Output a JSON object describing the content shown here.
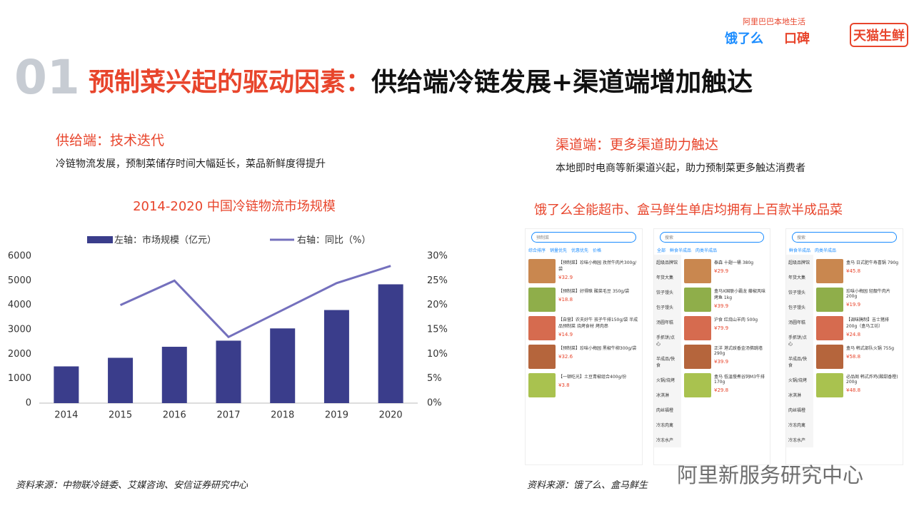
{
  "header": {
    "number": "01",
    "title_highlight": "预制菜兴起的驱动因素：",
    "title_rest": "供给端冷链发展+渠道端增加触达",
    "brand_tagline": "阿里巴巴本地生活",
    "brands": [
      "饿了么",
      "口碑",
      "天猫生鲜"
    ]
  },
  "left": {
    "heading": "供给端：技术迭代",
    "text": "冷链物流发展，预制菜储存时间大幅延长，菜品新鲜度得提升",
    "source": "资料来源：中物联冷链委、艾媒咨询、安信证券研究中心"
  },
  "right": {
    "heading": "渠道端：更多渠道助力触达",
    "text": "本地即时电商等新渠道兴起，助力预制菜更多触达消费者",
    "caption": "饿了么全能超市、盒马鲜生单店均拥有上百款半成品菜",
    "source": "资料来源：饿了么、盒马鲜生",
    "screens": [
      {
        "search": "预制菜",
        "tabs": [
          "综合排序",
          "销量优先",
          "优惠优先",
          "价格"
        ],
        "categories": [],
        "items": [
          {
            "name": "【预制菜】珍味小梅园 孜然牛肉片300g/袋",
            "price": "¥32.9"
          },
          {
            "name": "【预制菜】好得睐 酸菜毛豆 350g/袋",
            "price": "¥18.8"
          },
          {
            "name": "【自营】农夫好牛 孩子牛排150g/袋 半成品预制菜 烧烤食材 烤肉串",
            "price": "¥14.9"
          },
          {
            "name": "【预制菜】珍味小梅园 黑椒牛柳300g/袋",
            "price": "¥32.6"
          },
          {
            "name": "【一顿吃光】土豆青椒组合400g/份",
            "price": "¥3.8"
          }
        ]
      },
      {
        "search": "搜索",
        "tabs": [
          "全部",
          "鲜食半成品",
          "肉类半成品"
        ],
        "categories": [
          "超级品牌馆",
          "年货大集",
          "饺子馒头",
          "包子馒头",
          "汤圆年糕",
          "手抓饼/点心",
          "半成品/快食",
          "火锅/烧烤",
          "冰淇淋",
          "肉丝福橙",
          "冷冻肉禽",
          "冷冻水产"
        ],
        "items": [
          {
            "name": "泰森 十翅一桶 380g",
            "price": "¥29.9"
          },
          {
            "name": "盒马X国联小霸龙 藤椒风味烤鱼 1kg",
            "price": "¥39.9"
          },
          {
            "name": "沪食 红烧山羊肉 500g",
            "price": "¥79.9"
          },
          {
            "name": "正洋 港式豉香金汤佛跳墙 290g",
            "price": "¥39.9"
          },
          {
            "name": "盒马 低温慢煮谷饲M3牛排 170g",
            "price": "¥29.8"
          }
        ]
      },
      {
        "search": "搜索",
        "tabs": [
          "鲜食半成品",
          "肉类半成品"
        ],
        "categories": [
          "超级品牌馆",
          "年货大集",
          "饺子馒头",
          "包子馒头",
          "汤圆年糕",
          "手抓饼/点心",
          "半成品/快食",
          "火锅/烧烤",
          "冰淇淋",
          "肉丝福橙",
          "冷冻肉禽",
          "冷冻水产"
        ],
        "items": [
          {
            "name": "盒马 日式肥牛寿喜锅 790g",
            "price": "¥45.8"
          },
          {
            "name": "珍味小梅园 轻靓牛肉片 200g",
            "price": "¥19.9"
          },
          {
            "name": "【调味腌制】吉士猪排 200g（盒马工坊）",
            "price": "¥24.8"
          },
          {
            "name": "盒马 韩式部队火锅 755g",
            "price": "¥58.8"
          },
          {
            "name": "必品阁 韩式炸鸡(酸甜香橙) 200g",
            "price": "¥48.8"
          }
        ]
      }
    ]
  },
  "watermark": "阿里新服务研究中心",
  "chart_data": {
    "type": "bar",
    "title": "2014-2020 中国冷链物流市场规模",
    "categories": [
      "2014",
      "2015",
      "2016",
      "2017",
      "2018",
      "2019",
      "2020"
    ],
    "series": [
      {
        "name": "左轴：市场规模（亿元）",
        "type": "bar",
        "color": "#3a3d8b",
        "values": [
          1500,
          1850,
          2300,
          2550,
          3050,
          3800,
          4850
        ]
      },
      {
        "name": "右轴：同比（%）",
        "type": "line",
        "axis": "y2",
        "color": "#7470bd",
        "values": [
          null,
          20,
          25,
          13.5,
          19,
          24.5,
          28
        ]
      }
    ],
    "ylim": [
      0,
      6000
    ],
    "yticks": [
      0,
      1000,
      2000,
      3000,
      4000,
      5000,
      6000
    ],
    "y2lim": [
      0,
      30
    ],
    "y2ticks": [
      {
        "value": 0,
        "label": "0%"
      },
      {
        "value": 5,
        "label": "5%"
      },
      {
        "value": 10,
        "label": "10%"
      },
      {
        "value": 15,
        "label": "15%"
      },
      {
        "value": 20,
        "label": "20%"
      },
      {
        "value": 25,
        "label": "25%"
      },
      {
        "value": 30,
        "label": "30%"
      }
    ],
    "legend": "top",
    "grid": false
  }
}
